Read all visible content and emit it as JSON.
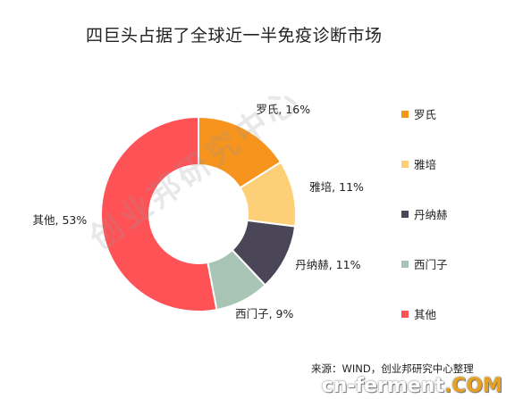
{
  "chart_data": {
    "type": "pie",
    "variant": "donut",
    "title": "四巨头占据了全球近一半免疫诊断市场",
    "slices": [
      {
        "name": "罗氏",
        "value": 16,
        "label": "罗氏, 16%",
        "color": "#f7941d"
      },
      {
        "name": "雅培",
        "value": 11,
        "label": "雅培, 11%",
        "color": "#fdd078"
      },
      {
        "name": "丹纳赫",
        "value": 11,
        "label": "丹纳赫, 11%",
        "color": "#4a4658"
      },
      {
        "name": "西门子",
        "value": 9,
        "label": "西门子, 9%",
        "color": "#a8c4b4"
      },
      {
        "name": "其他",
        "value": 53,
        "label": "其他, 53%",
        "color": "#ff5257"
      }
    ],
    "legend_position": "right"
  },
  "source_text": "来源：WIND，创业邦研究中心整理",
  "watermark_text": "创业邦研究中心",
  "site_logo": {
    "part1": "cn-ferment",
    "part2": ".COM"
  }
}
